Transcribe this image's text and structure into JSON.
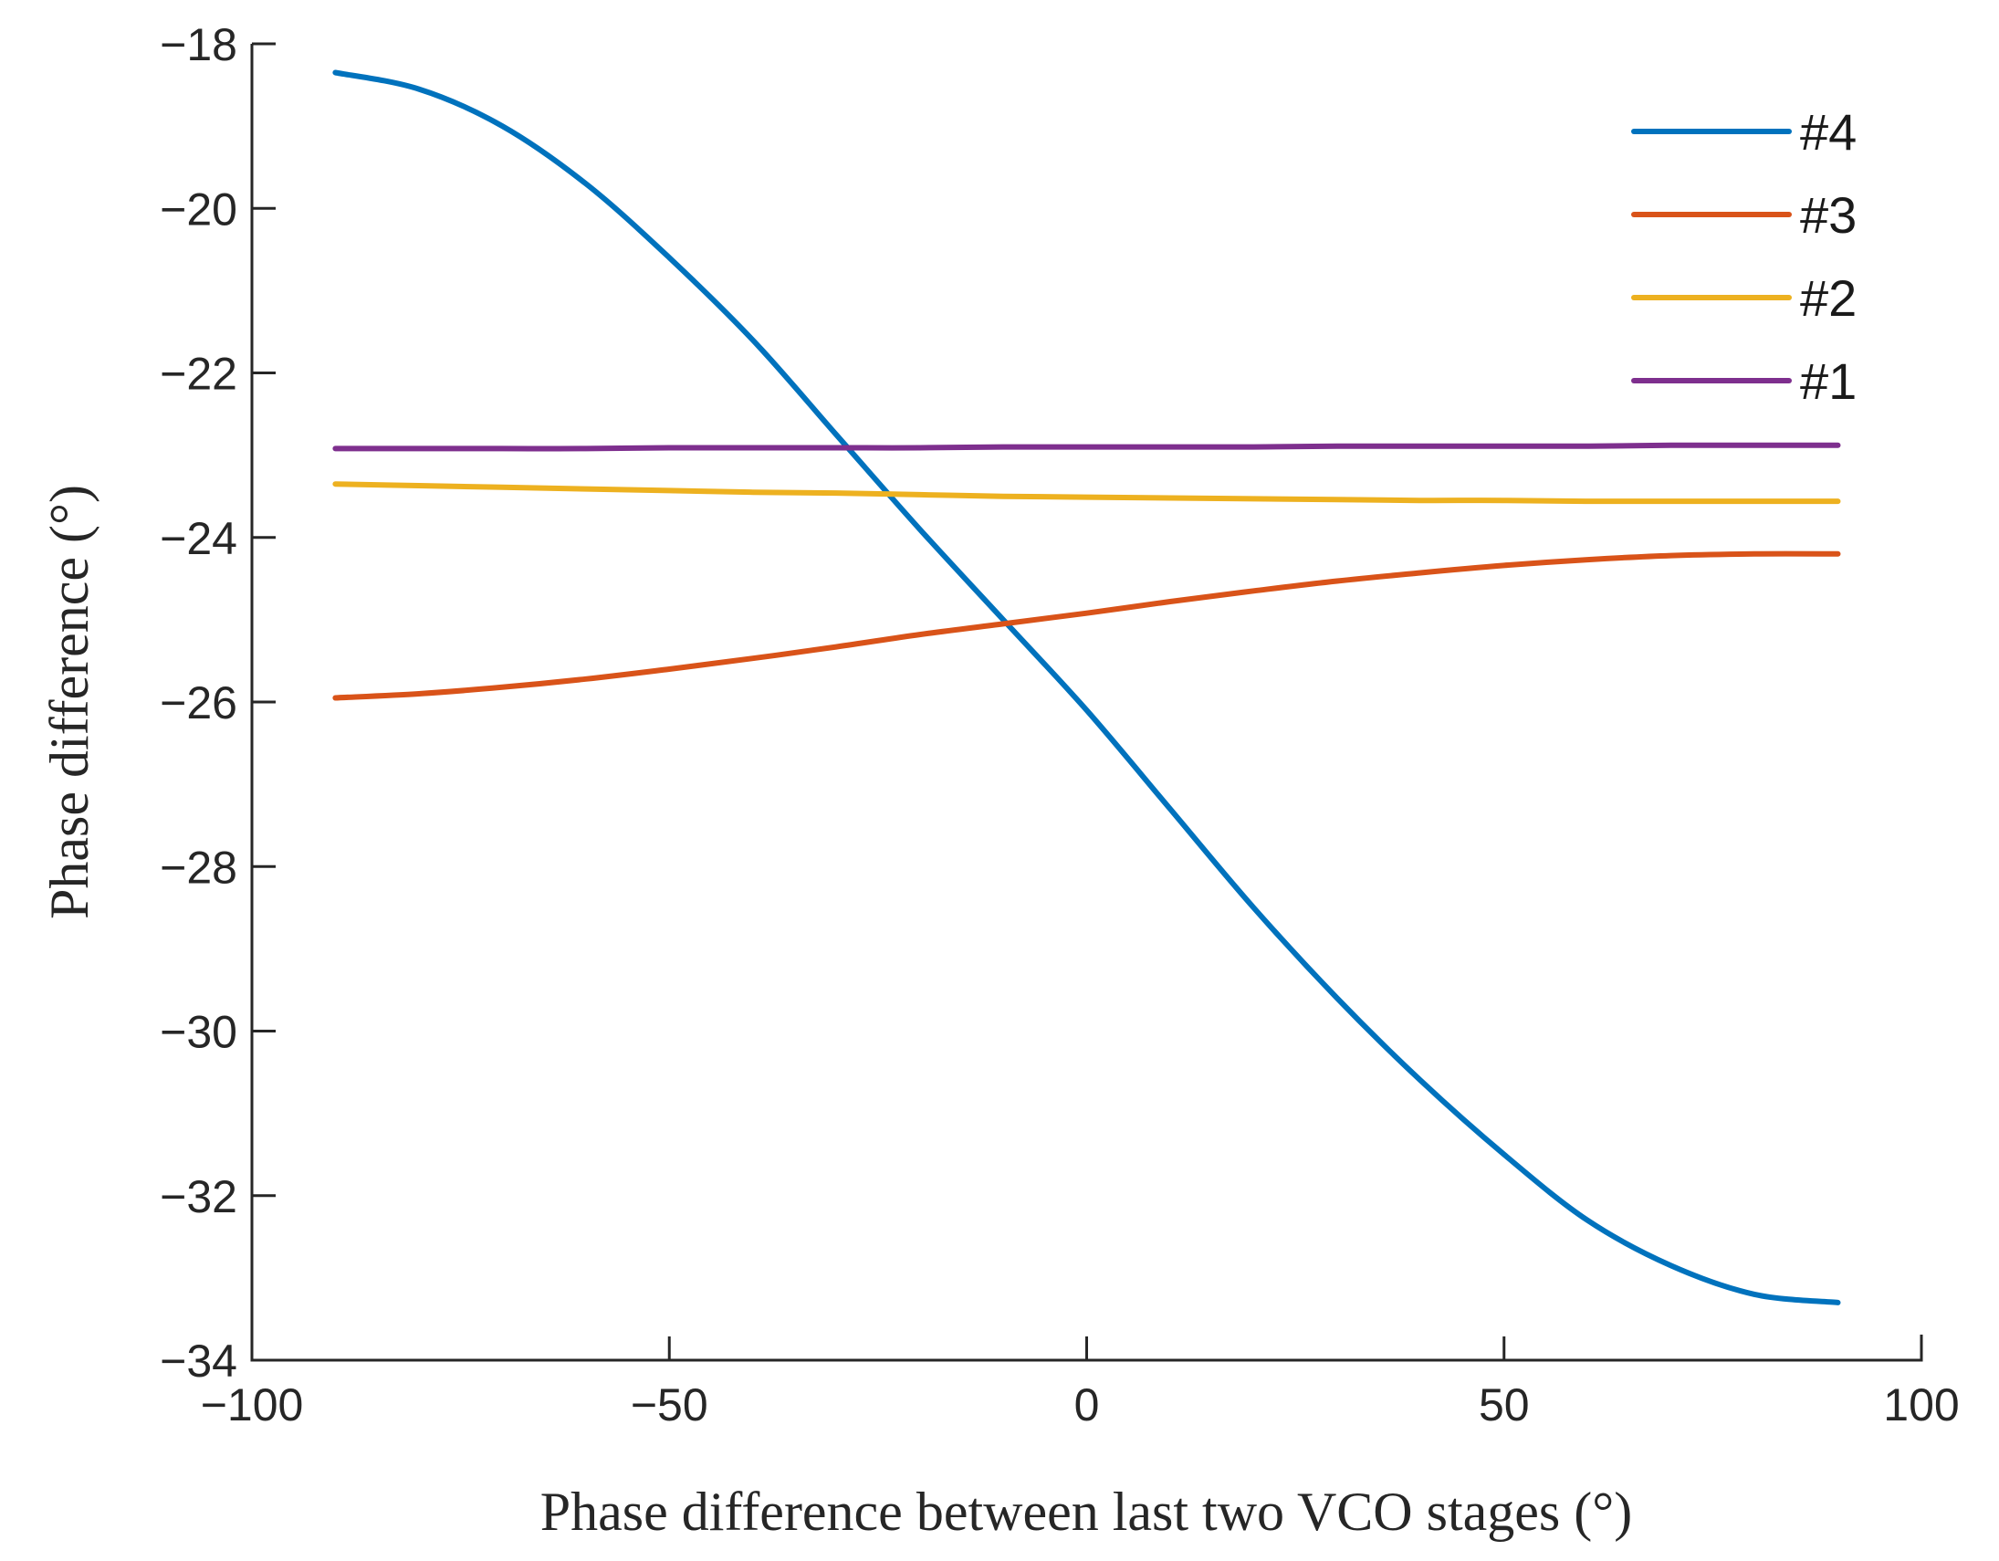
{
  "chart_data": {
    "type": "line",
    "title": "",
    "xlabel": "Phase difference between last two VCO stages (°)",
    "ylabel": "Phase difference (°)",
    "xlim": [
      -100,
      100
    ],
    "ylim": [
      -34,
      -18
    ],
    "xticks": [
      -100,
      -50,
      0,
      50,
      100
    ],
    "xtick_labels": [
      "−100",
      "−50",
      "0",
      "50",
      "100"
    ],
    "yticks": [
      -18,
      -20,
      -22,
      -24,
      -26,
      -28,
      -30,
      -32,
      -34
    ],
    "ytick_labels": [
      "−18",
      "−20",
      "−22",
      "−24",
      "−26",
      "−28",
      "−30",
      "−32",
      "−34"
    ],
    "grid": false,
    "legend": "top-right",
    "x": [
      -90,
      -80,
      -70,
      -60,
      -50,
      -40,
      -30,
      -20,
      -10,
      0,
      10,
      20,
      30,
      40,
      50,
      60,
      70,
      80,
      90
    ],
    "series": [
      {
        "name": "#4",
        "color": "#0072BD",
        "values": [
          -18.35,
          -18.55,
          -19.0,
          -19.7,
          -20.6,
          -21.6,
          -22.75,
          -23.9,
          -25.0,
          -26.1,
          -27.3,
          -28.5,
          -29.6,
          -30.6,
          -31.5,
          -32.3,
          -32.85,
          -33.2,
          -33.3
        ]
      },
      {
        "name": "#3",
        "color": "#D95319",
        "values": [
          -25.95,
          -25.9,
          -25.82,
          -25.72,
          -25.6,
          -25.47,
          -25.33,
          -25.18,
          -25.05,
          -24.92,
          -24.78,
          -24.65,
          -24.53,
          -24.43,
          -24.34,
          -24.27,
          -24.22,
          -24.2,
          -24.2
        ]
      },
      {
        "name": "#2",
        "color": "#EDB120",
        "values": [
          -23.35,
          -23.37,
          -23.39,
          -23.41,
          -23.43,
          -23.45,
          -23.46,
          -23.48,
          -23.5,
          -23.51,
          -23.52,
          -23.53,
          -23.54,
          -23.55,
          -23.55,
          -23.56,
          -23.56,
          -23.56,
          -23.56
        ]
      },
      {
        "name": "#1",
        "color": "#7E2F8E",
        "values": [
          -22.92,
          -22.92,
          -22.92,
          -22.92,
          -22.91,
          -22.91,
          -22.91,
          -22.91,
          -22.9,
          -22.9,
          -22.9,
          -22.9,
          -22.89,
          -22.89,
          -22.89,
          -22.89,
          -22.88,
          -22.88,
          -22.88
        ]
      }
    ]
  }
}
